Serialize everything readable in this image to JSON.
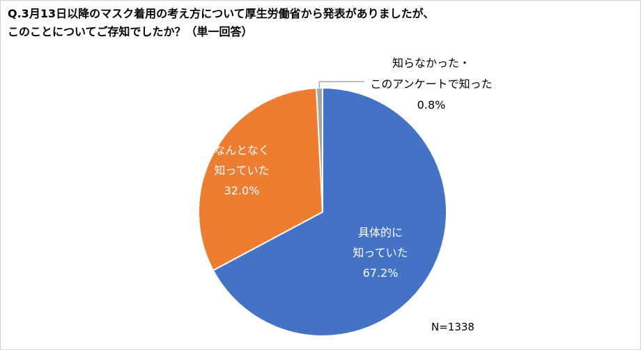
{
  "chart_data": {
    "type": "pie",
    "title_lines": [
      "Q.3月13日以降のマスク着用の考え方について厚生労働省から発表がありましたが、",
      "このことについてご存知でしたか？（単一回答）"
    ],
    "slices": [
      {
        "label_lines": [
          "具体的に",
          "知っていた"
        ],
        "value": 67.2,
        "value_label": "67.2%",
        "color": "#4472C4"
      },
      {
        "label_lines": [
          "なんとなく",
          "知っていた"
        ],
        "value": 32.0,
        "value_label": "32.0%",
        "color": "#ED7D31"
      },
      {
        "label_lines": [
          "知らなかった・",
          "このアンケートで知った"
        ],
        "value": 0.8,
        "value_label": "0.8%",
        "color": "#A5A5A5"
      }
    ],
    "sample_size": "N=1338"
  }
}
